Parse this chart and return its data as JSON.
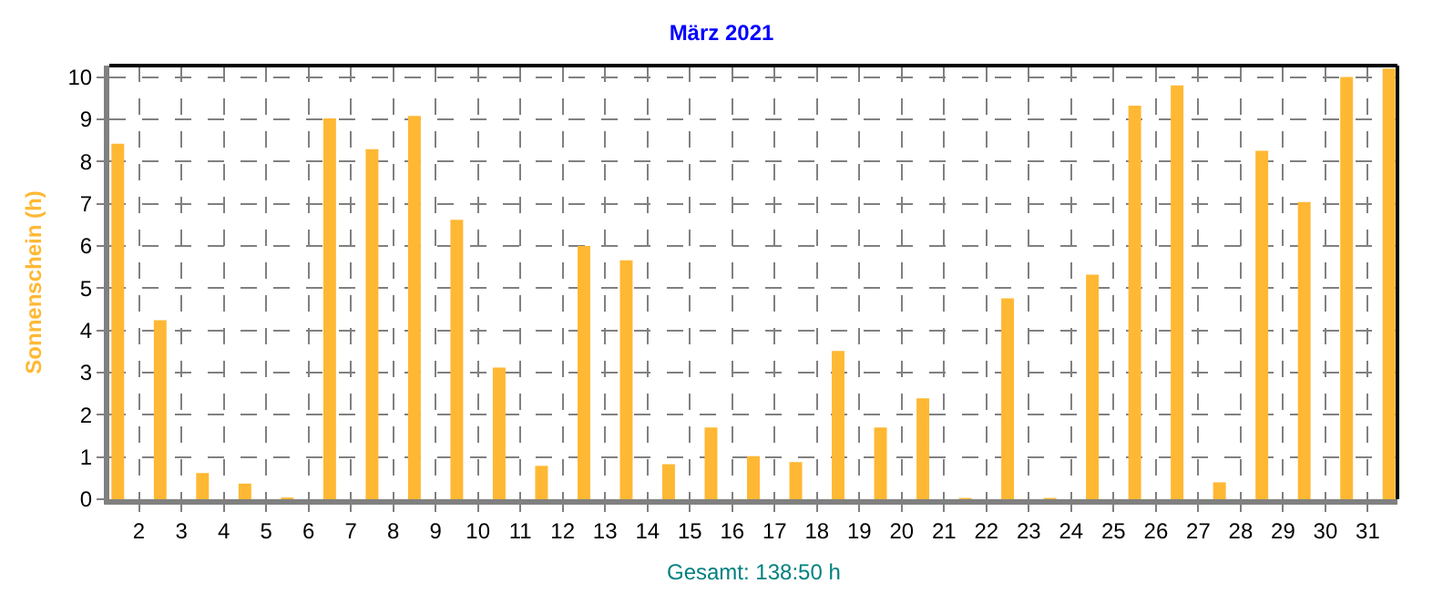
{
  "chart_data": {
    "type": "bar",
    "title": "März 2021",
    "ylabel": "Sonnenschein (h)",
    "annotations": [
      "Gesamt: 138:50 h"
    ],
    "x": [
      1.5,
      2.5,
      3.5,
      4.5,
      5.5,
      6.5,
      7.5,
      8.5,
      9.5,
      10.5,
      11.5,
      12.5,
      13.5,
      14.5,
      15.5,
      16.5,
      17.5,
      18.5,
      19.5,
      20.5,
      21.5,
      22.5,
      23.5,
      24.5,
      25.5,
      26.5,
      27.5,
      28.5,
      29.5,
      30.5,
      31.5
    ],
    "values": [
      8.42,
      4.24,
      0.62,
      0.37,
      0.04,
      9.02,
      8.29,
      9.08,
      6.62,
      3.12,
      0.79,
      6.0,
      5.66,
      0.83,
      1.7,
      1.02,
      0.88,
      3.51,
      1.7,
      2.39,
      0.03,
      4.76,
      0.03,
      5.32,
      9.32,
      9.8,
      0.4,
      8.25,
      7.04,
      10.0,
      10.2
    ],
    "color": "#ffb833",
    "xlim": [
      1.3,
      31.7
    ],
    "xticks": [
      2,
      3,
      4,
      5,
      6,
      7,
      8,
      9,
      10,
      11,
      12,
      13,
      14,
      15,
      16,
      17,
      18,
      19,
      20,
      21,
      22,
      23,
      24,
      25,
      26,
      27,
      28,
      29,
      30,
      31
    ],
    "ylim": [
      0,
      10.27
    ],
    "yticks": [
      0,
      1,
      2,
      3,
      4,
      5,
      6,
      7,
      8,
      9,
      10
    ],
    "grid": true
  }
}
